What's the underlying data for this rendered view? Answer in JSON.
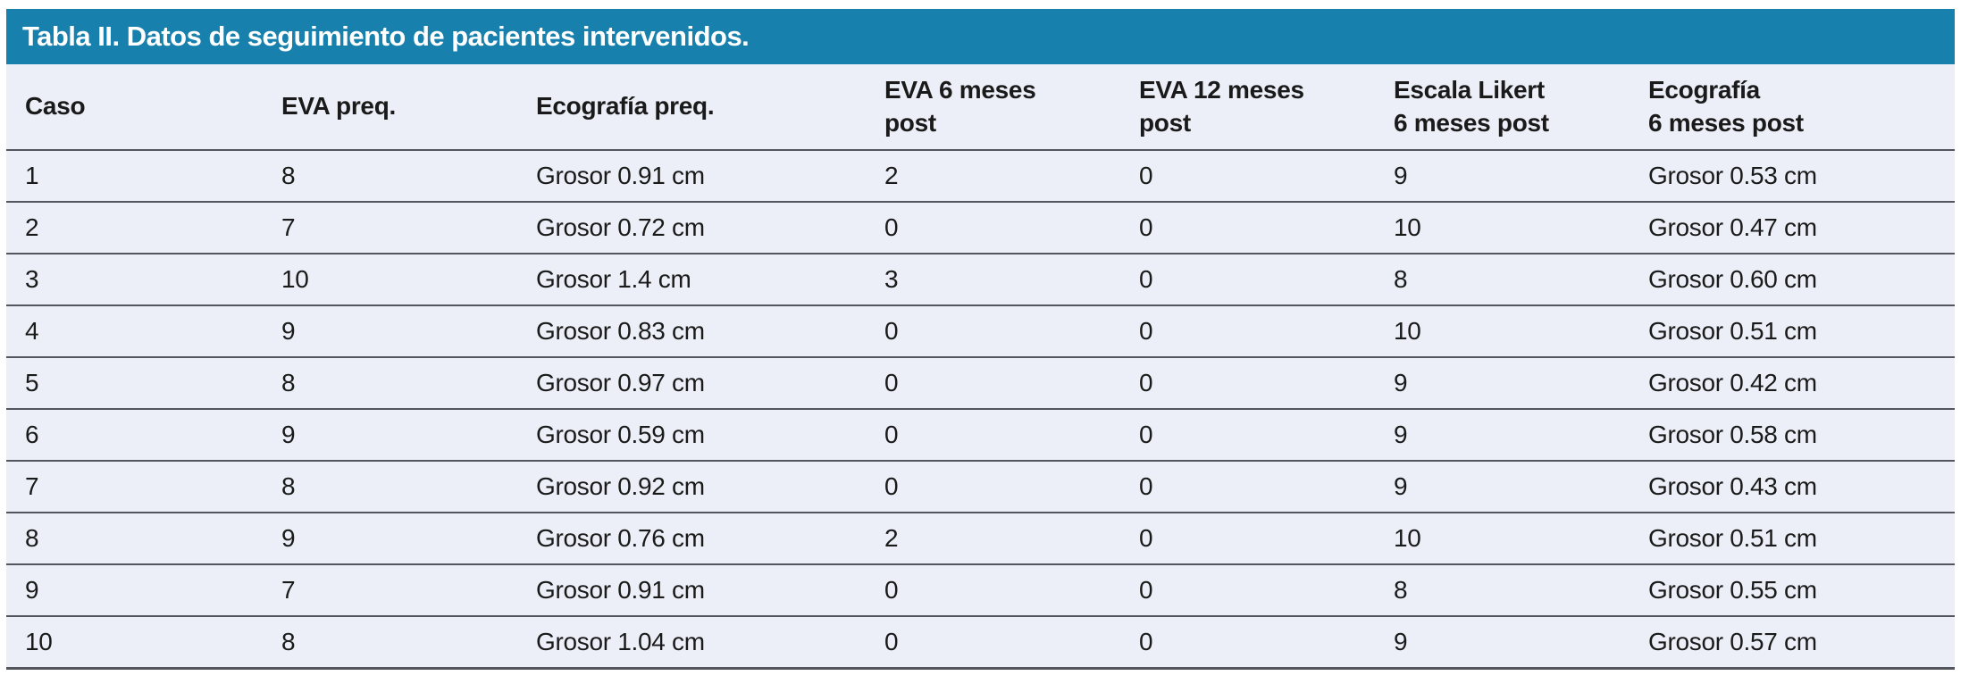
{
  "title": "Tabla II. Datos de seguimiento de pacientes intervenidos.",
  "colors": {
    "title_bar_background": "#1780AD",
    "title_text": "#FFFFFF",
    "row_background": "#ECEFF7",
    "separator_line": "#53575D",
    "body_text": "#1A1A1A"
  },
  "table": {
    "columns": [
      "Caso",
      "EVA preq.",
      "Ecografía preq.",
      "EVA 6 meses\npost",
      "EVA 12 meses\npost",
      "Escala Likert\n6 meses post",
      "Ecografía\n6 meses post"
    ],
    "rows": [
      [
        "1",
        "8",
        "Grosor 0.91 cm",
        "2",
        "0",
        "9",
        "Grosor 0.53 cm"
      ],
      [
        "2",
        "7",
        "Grosor 0.72 cm",
        "0",
        "0",
        "10",
        "Grosor 0.47 cm"
      ],
      [
        "3",
        "10",
        "Grosor 1.4 cm",
        "3",
        "0",
        "8",
        "Grosor 0.60 cm"
      ],
      [
        "4",
        "9",
        "Grosor 0.83 cm",
        "0",
        "0",
        "10",
        "Grosor 0.51 cm"
      ],
      [
        "5",
        "8",
        "Grosor 0.97 cm",
        "0",
        "0",
        "9",
        "Grosor 0.42 cm"
      ],
      [
        "6",
        "9",
        "Grosor 0.59 cm",
        "0",
        "0",
        "9",
        "Grosor 0.58 cm"
      ],
      [
        "7",
        "8",
        "Grosor 0.92 cm",
        "0",
        "0",
        "9",
        "Grosor 0.43 cm"
      ],
      [
        "8",
        "9",
        "Grosor 0.76 cm",
        "2",
        "0",
        "10",
        "Grosor 0.51 cm"
      ],
      [
        "9",
        "7",
        "Grosor 0.91 cm",
        "0",
        "0",
        "8",
        "Grosor 0.55 cm"
      ],
      [
        "10",
        "8",
        "Grosor 1.04 cm",
        "0",
        "0",
        "9",
        "Grosor 0.57 cm"
      ]
    ]
  }
}
